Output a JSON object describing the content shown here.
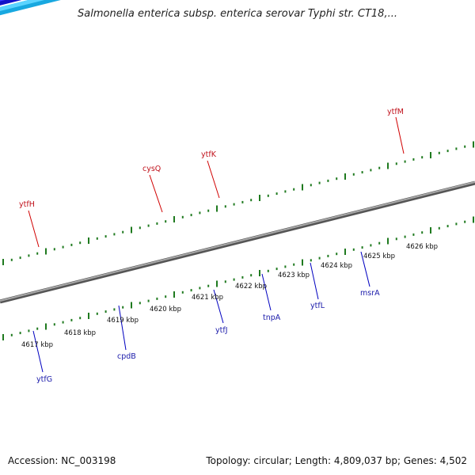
{
  "title": "Salmonella enterica subsp. enterica serovar Typhi str. CT18,...",
  "footer": {
    "accession": "Accession: NC_003198",
    "topology": "Topology: circular; Length: 4,809,037 bp; Genes: 4,502"
  },
  "scale_labels": [
    "4617 kbp",
    "4618 kbp",
    "4619 kbp",
    "4620 kbp",
    "4621 kbp",
    "4622 kbp",
    "4623 kbp",
    "4624 kbp",
    "4625 kbp",
    "4626 kbp"
  ],
  "genes_top": [
    "ytfH",
    "cysQ",
    "ytfK",
    "ytfM"
  ],
  "genes_bottom": [
    "ytfG",
    "cpdB",
    "ytfJ",
    "tnpA",
    "ytfL",
    "msrA"
  ],
  "colors": {
    "backbone": "#808080",
    "tick": "#1f7a1f",
    "cds_forward": "#ff1a1a",
    "cds_reverse": "#1f1fe0"
  }
}
